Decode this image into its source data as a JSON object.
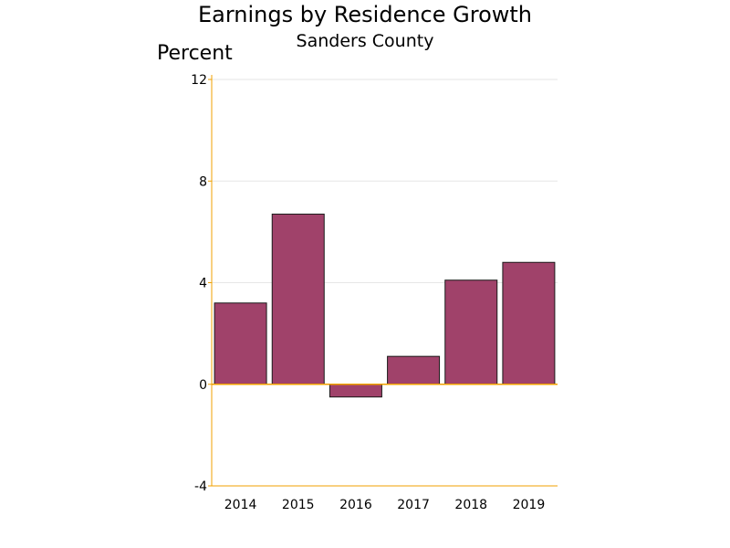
{
  "chart_data": {
    "type": "bar",
    "title": "Earnings by Residence Growth",
    "subtitle": "Sanders County",
    "ylabel": "Percent",
    "xlabel": "",
    "categories": [
      "2014",
      "2015",
      "2016",
      "2017",
      "2018",
      "2019"
    ],
    "values": [
      3.2,
      6.7,
      -0.5,
      1.1,
      4.1,
      4.8
    ],
    "ylim": [
      -4,
      12
    ],
    "yticks": [
      "-4",
      "0",
      "4",
      "8",
      "12"
    ],
    "grid": true,
    "legend": "none",
    "colors": {
      "bar_fill": "#a0426a",
      "bar_stroke": "#1a1a1a",
      "axis": "#f0a000",
      "grid": "#e6e6e6"
    }
  }
}
